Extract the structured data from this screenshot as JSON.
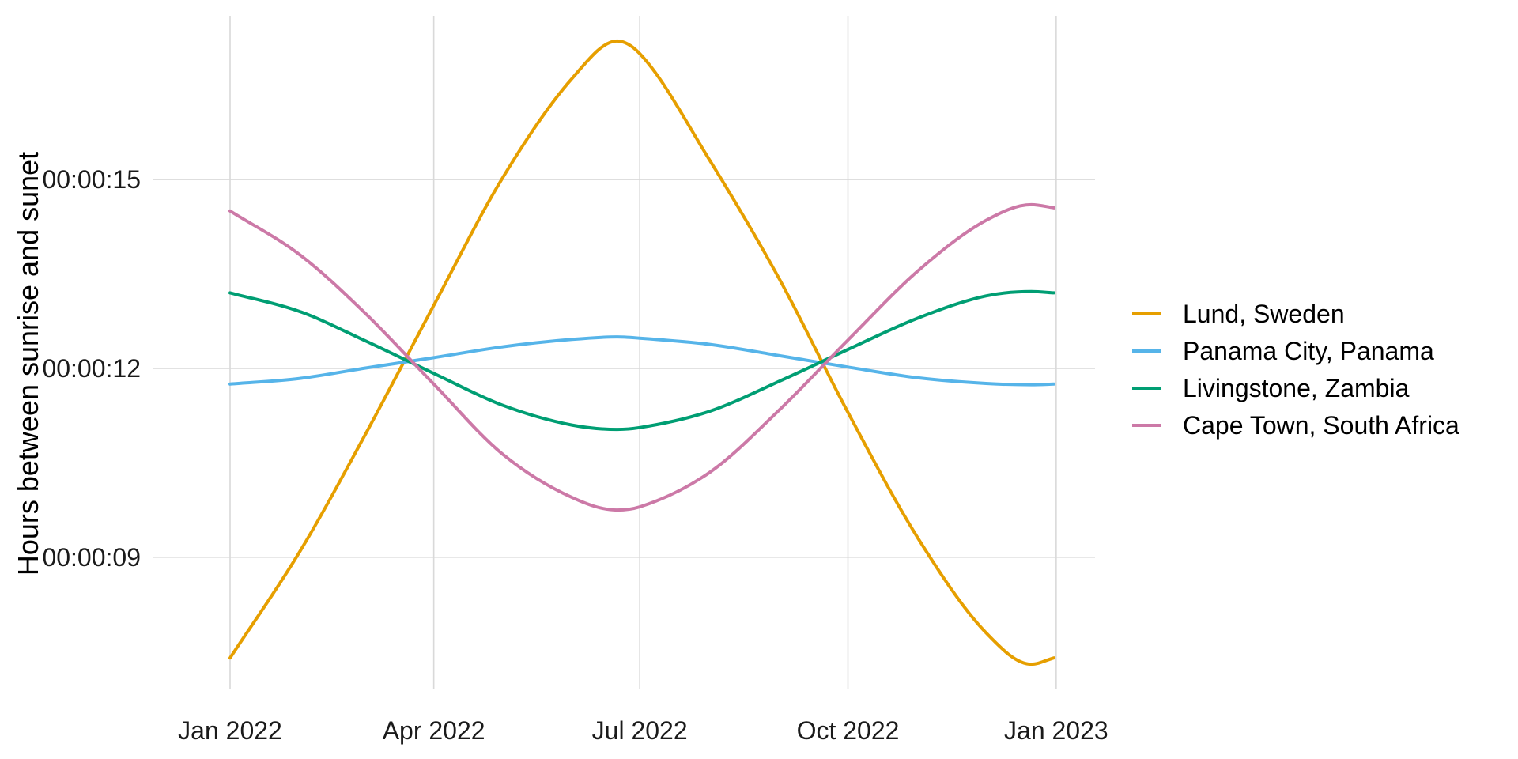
{
  "chart_data": {
    "type": "line",
    "title": "",
    "xlabel": "",
    "ylabel": "Hours between sunrise and sunet",
    "x_type": "date",
    "xlim": [
      "2022-01-01",
      "2022-12-31"
    ],
    "ylim_seconds": [
      6.9,
      17.6
    ],
    "x_ticks": [
      {
        "date": "2022-01-01",
        "label": "Jan 2022"
      },
      {
        "date": "2022-04-01",
        "label": "Apr 2022"
      },
      {
        "date": "2022-07-01",
        "label": "Jul 2022"
      },
      {
        "date": "2022-10-01",
        "label": "Oct 2022"
      },
      {
        "date": "2023-01-01",
        "label": "Jan 2023"
      }
    ],
    "y_ticks": [
      {
        "seconds": 9,
        "label": "00:00:09"
      },
      {
        "seconds": 12,
        "label": "00:00:12"
      },
      {
        "seconds": 15,
        "label": "00:00:15"
      }
    ],
    "grid": true,
    "legend_position": "right",
    "x": [
      "2022-01-01",
      "2022-02-01",
      "2022-03-01",
      "2022-04-01",
      "2022-05-01",
      "2022-06-01",
      "2022-06-21",
      "2022-07-01",
      "2022-08-01",
      "2022-09-01",
      "2022-10-01",
      "2022-11-01",
      "2022-12-01",
      "2022-12-21",
      "2022-12-31"
    ],
    "series": [
      {
        "name": "Lund, Sweden",
        "color": "#E69F00",
        "values": [
          7.4,
          9.1,
          10.9,
          13.0,
          15.0,
          16.6,
          17.2,
          17.0,
          15.3,
          13.4,
          11.3,
          9.3,
          7.8,
          7.3,
          7.4
        ]
      },
      {
        "name": "Panama City, Panama",
        "color": "#56B4E9",
        "values": [
          11.75,
          11.84,
          12.0,
          12.17,
          12.34,
          12.46,
          12.5,
          12.48,
          12.38,
          12.2,
          12.02,
          11.85,
          11.76,
          11.74,
          11.75
        ]
      },
      {
        "name": "Livingstone, Zambia",
        "color": "#009E73",
        "values": [
          13.2,
          12.9,
          12.45,
          11.92,
          11.42,
          11.1,
          11.03,
          11.06,
          11.32,
          11.8,
          12.3,
          12.8,
          13.15,
          13.22,
          13.2
        ]
      },
      {
        "name": "Cape Town, South Africa",
        "color": "#CC79A7",
        "values": [
          14.5,
          13.8,
          12.9,
          11.75,
          10.65,
          9.95,
          9.75,
          9.8,
          10.35,
          11.35,
          12.45,
          13.55,
          14.35,
          14.6,
          14.55
        ]
      }
    ]
  }
}
